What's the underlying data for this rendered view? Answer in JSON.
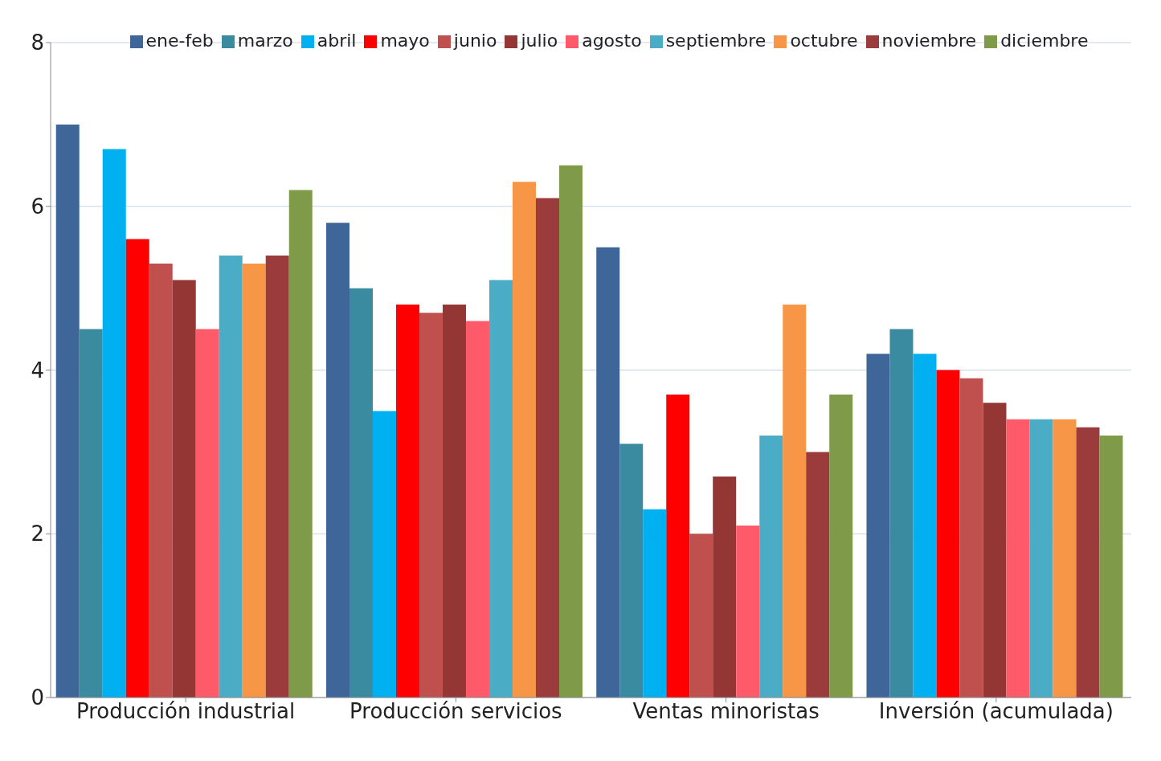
{
  "chart_data": {
    "type": "bar",
    "categories": [
      "Producción industrial",
      "Producción servicios",
      "Ventas minoristas",
      "Inversión (acumulada)"
    ],
    "series": [
      {
        "name": "ene-feb",
        "color": "#3e6699",
        "values": [
          7.0,
          5.8,
          5.5,
          4.2
        ]
      },
      {
        "name": "marzo",
        "color": "#3b8ba0",
        "values": [
          4.5,
          5.0,
          3.1,
          4.5
        ]
      },
      {
        "name": "abril",
        "color": "#00b0f0",
        "values": [
          6.7,
          3.5,
          2.3,
          4.2
        ]
      },
      {
        "name": "mayo",
        "color": "#ff0000",
        "values": [
          5.6,
          4.8,
          3.7,
          4.0
        ]
      },
      {
        "name": "junio",
        "color": "#c0504d",
        "values": [
          5.3,
          4.7,
          2.0,
          3.9
        ]
      },
      {
        "name": "julio",
        "color": "#943634",
        "values": [
          5.1,
          4.8,
          2.7,
          3.6
        ]
      },
      {
        "name": "agosto",
        "color": "#ff5a6a",
        "values": [
          4.5,
          4.6,
          2.1,
          3.4
        ]
      },
      {
        "name": "septiembre",
        "color": "#4bacc6",
        "values": [
          5.4,
          5.1,
          3.2,
          3.4
        ]
      },
      {
        "name": "octubre",
        "color": "#f79646",
        "values": [
          5.3,
          6.3,
          4.8,
          3.4
        ]
      },
      {
        "name": "noviembre",
        "color": "#9b3b3b",
        "values": [
          5.4,
          6.1,
          3.0,
          3.3
        ]
      },
      {
        "name": "diciembre",
        "color": "#7f9a48",
        "values": [
          6.2,
          6.5,
          3.7,
          3.2
        ]
      }
    ],
    "ylim": [
      0,
      8
    ],
    "yticks": [
      0,
      2,
      4,
      6,
      8
    ],
    "grid": "y",
    "legend": "top"
  }
}
